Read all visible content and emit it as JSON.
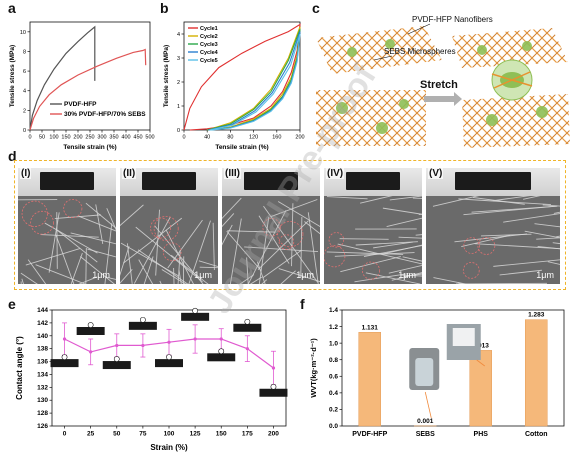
{
  "panels": {
    "a": "a",
    "b": "b",
    "c": "c",
    "d": "d",
    "e": "e",
    "f": "f"
  },
  "watermark_text": "Journal Pre-proof",
  "chart_data": [
    {
      "id": "a",
      "type": "line",
      "xlabel": "Tensile strain (%)",
      "ylabel": "Tensile stress (MPa)",
      "xlim": [
        0,
        500
      ],
      "ylim": [
        0,
        11
      ],
      "xticks": [
        "0",
        "50",
        "100",
        "150",
        "200",
        "250",
        "300",
        "350",
        "400",
        "450",
        "500"
      ],
      "yticks": [
        "0",
        "2",
        "4",
        "6",
        "8",
        "10"
      ],
      "legend": "bottom-right",
      "series": [
        {
          "name": "PVDF-HFP",
          "color": "#555555",
          "x": [
            0,
            10,
            30,
            60,
            100,
            150,
            200,
            240,
            265,
            270,
            270
          ],
          "y": [
            0,
            1.5,
            3.0,
            4.6,
            6.2,
            7.8,
            9.0,
            9.9,
            10.4,
            10.5,
            5.0
          ]
        },
        {
          "name": "30% PVDF-HFP/70% SEBS",
          "color": "#e05555",
          "x": [
            0,
            15,
            40,
            80,
            130,
            200,
            280,
            360,
            430,
            470,
            480,
            482
          ],
          "y": [
            0,
            1.2,
            2.4,
            3.6,
            4.6,
            5.6,
            6.5,
            7.3,
            7.9,
            8.1,
            8.2,
            6.6
          ]
        }
      ]
    },
    {
      "id": "b",
      "type": "line",
      "xlabel": "Tensile strain (%)",
      "ylabel": "Tensile stress (MPa)",
      "xlim": [
        0,
        200
      ],
      "ylim": [
        0,
        4.5
      ],
      "xticks": [
        "0",
        "40",
        "80",
        "120",
        "160",
        "200"
      ],
      "yticks": [
        "0",
        "1",
        "2",
        "3",
        "4"
      ],
      "legend": "top-left",
      "series": [
        {
          "name": "Cycle1",
          "color": "#e03030",
          "x": [
            0,
            10,
            30,
            60,
            100,
            140,
            180,
            200,
            195,
            185,
            170,
            150,
            120,
            80,
            40,
            10
          ],
          "y": [
            0,
            0.9,
            1.8,
            2.6,
            3.2,
            3.7,
            4.1,
            4.4,
            3.3,
            2.4,
            1.6,
            1.0,
            0.5,
            0.2,
            0.05,
            0
          ]
        },
        {
          "name": "Cycle2",
          "color": "#d4b000",
          "x": [
            40,
            80,
            120,
            150,
            180,
            200,
            195,
            185,
            170,
            150,
            120,
            80,
            45
          ],
          "y": [
            0,
            0.3,
            0.9,
            1.7,
            3.0,
            4.3,
            3.1,
            2.2,
            1.5,
            0.9,
            0.45,
            0.12,
            0
          ]
        },
        {
          "name": "Cycle3",
          "color": "#2aa84a",
          "x": [
            40,
            80,
            120,
            150,
            180,
            200,
            195,
            185,
            170,
            150,
            120,
            80,
            45
          ],
          "y": [
            0,
            0.25,
            0.85,
            1.6,
            2.9,
            4.2,
            3.0,
            2.1,
            1.4,
            0.85,
            0.4,
            0.1,
            0
          ]
        },
        {
          "name": "Cycle4",
          "color": "#2a7fd0",
          "x": [
            42,
            82,
            122,
            152,
            182,
            200,
            195,
            185,
            170,
            150,
            120,
            80,
            46
          ],
          "y": [
            0,
            0.22,
            0.8,
            1.55,
            2.8,
            4.1,
            2.9,
            2.0,
            1.35,
            0.8,
            0.38,
            0.09,
            0
          ]
        },
        {
          "name": "Cycle5",
          "color": "#5cc0e8",
          "x": [
            44,
            84,
            124,
            154,
            184,
            200,
            195,
            185,
            170,
            150,
            120,
            80,
            48
          ],
          "y": [
            0,
            0.2,
            0.75,
            1.5,
            2.7,
            4.0,
            2.85,
            1.95,
            1.3,
            0.78,
            0.36,
            0.08,
            0
          ]
        }
      ]
    },
    {
      "id": "e",
      "type": "line",
      "xlabel": "Strain (%)",
      "ylabel": "Contact angle (°)",
      "xlim": [
        -12,
        212
      ],
      "ylim": [
        126,
        144
      ],
      "xticks": [
        "0",
        "25",
        "50",
        "75",
        "100",
        "125",
        "150",
        "175",
        "200"
      ],
      "yticks": [
        "126",
        "128",
        "130",
        "132",
        "134",
        "136",
        "138",
        "140",
        "142",
        "144"
      ],
      "series": [
        {
          "name": "",
          "color": "#e05ad0",
          "x": [
            0,
            25,
            50,
            75,
            100,
            125,
            150,
            175,
            200
          ],
          "y": [
            139.5,
            137.5,
            138.5,
            138.5,
            139,
            139.5,
            139.5,
            138,
            135
          ],
          "err": [
            2.5,
            2,
            1.8,
            1.8,
            2,
            2.2,
            1.6,
            2,
            2.6
          ]
        }
      ]
    },
    {
      "id": "f",
      "type": "bar",
      "xlabel": "",
      "ylabel": "WVT(kg·m⁻²·d⁻¹)",
      "ylim": [
        0,
        1.4
      ],
      "yticks": [
        "0.0",
        "0.2",
        "0.4",
        "0.6",
        "0.8",
        "1.0",
        "1.2",
        "1.4"
      ],
      "categories": [
        "PVDF-HFP",
        "SEBS",
        "PHS",
        "Cotton"
      ],
      "values": [
        1.131,
        0.001,
        0.913,
        1.283
      ],
      "labels": [
        "1.131",
        "0.001",
        "0.913",
        "1.283"
      ],
      "color": "#f5b87a"
    }
  ],
  "schematic_c": {
    "label_nanofibers": "PVDF-HFP Nanofibers",
    "label_microspheres": "SEBS Microspheres",
    "stretch_label": "Stretch"
  },
  "sem_d": {
    "labels": [
      "(I)",
      "(II)",
      "(III)",
      "(IV)",
      "(V)"
    ],
    "scale": [
      "1μm",
      "1μm",
      "1μm",
      "1μm",
      "1μm"
    ]
  }
}
